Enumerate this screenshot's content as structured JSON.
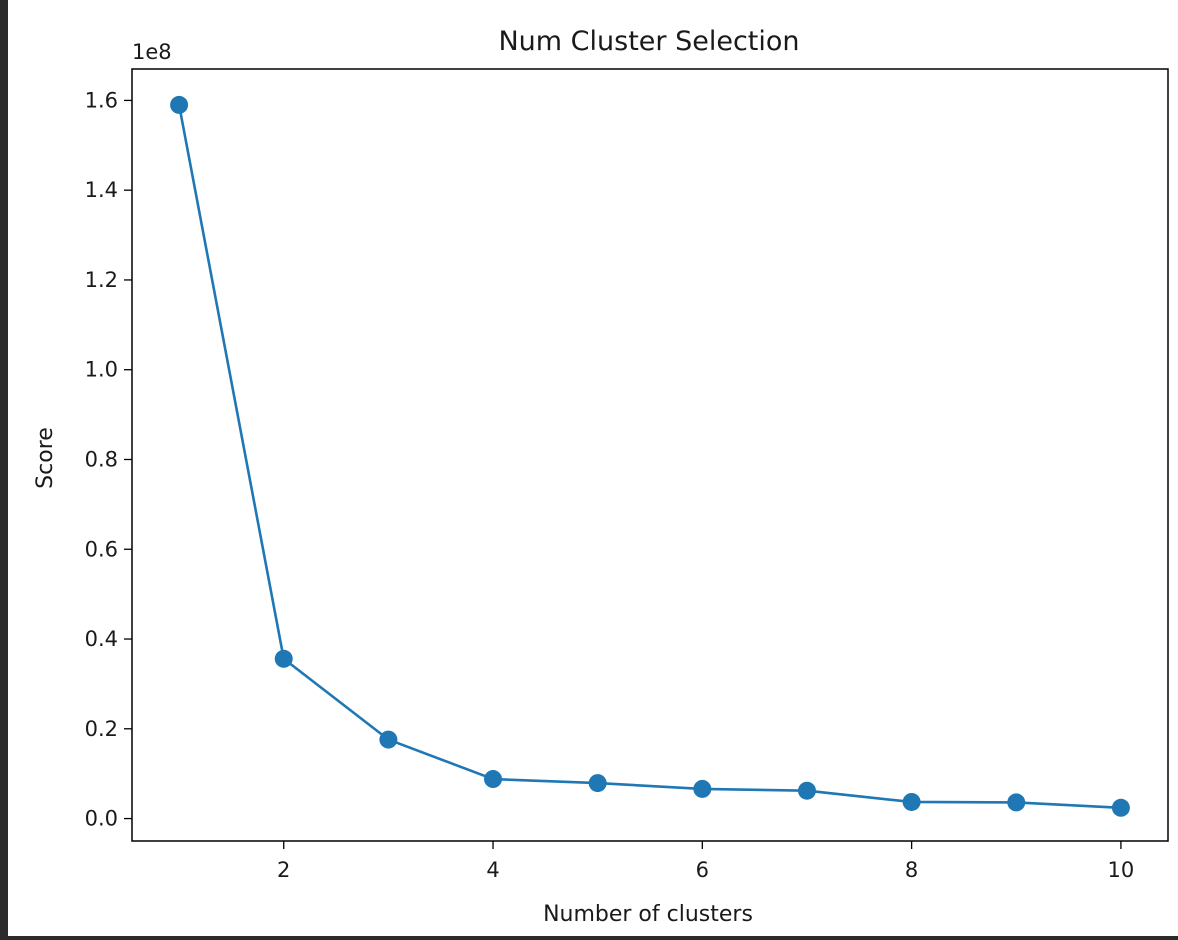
{
  "chart_data": {
    "type": "line",
    "title": "Num Cluster Selection",
    "xlabel": "Number of clusters",
    "ylabel": "Score",
    "y_offset_label": "1e8",
    "x": [
      1,
      2,
      3,
      4,
      5,
      6,
      7,
      8,
      9,
      10
    ],
    "series": [
      {
        "name": "Score",
        "color": "#1f77b4",
        "marker": "circle",
        "values": [
          1.59,
          0.356,
          0.176,
          0.088,
          0.079,
          0.066,
          0.062,
          0.037,
          0.036,
          0.024
        ]
      }
    ],
    "xlim": [
      0.55,
      10.45
    ],
    "ylim": [
      -0.05,
      1.67
    ],
    "xticks": [
      2,
      4,
      6,
      8,
      10
    ],
    "xtick_labels": [
      "2",
      "4",
      "6",
      "8",
      "10"
    ],
    "yticks": [
      0.0,
      0.2,
      0.4,
      0.6,
      0.8,
      1.0,
      1.2,
      1.4,
      1.6
    ],
    "ytick_labels": [
      "0.0",
      "0.2",
      "0.4",
      "0.6",
      "0.8",
      "1.0",
      "1.2",
      "1.4",
      "1.6"
    ],
    "grid": false,
    "legend": "none"
  }
}
